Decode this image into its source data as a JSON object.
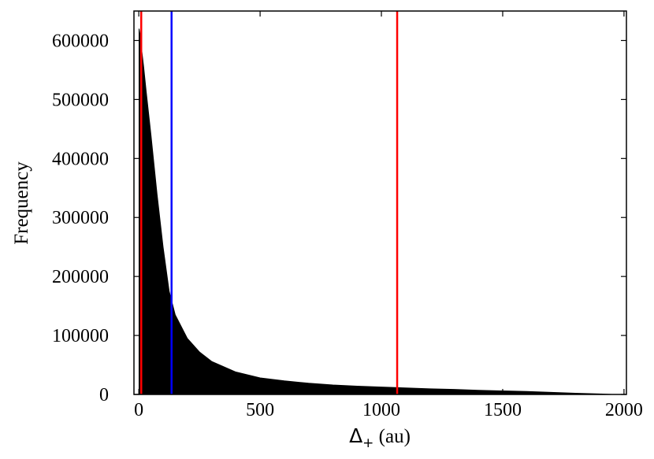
{
  "chart_data": {
    "type": "bar",
    "title": "",
    "xlabel_symbol": "Δ",
    "xlabel_subscript": "+",
    "xlabel_unit": " (au)",
    "ylabel": "Frequency",
    "xlim": [
      -20,
      2010
    ],
    "ylim": [
      0,
      650000
    ],
    "xticks": [
      0,
      500,
      1000,
      1500,
      2000
    ],
    "yticks": [
      0,
      100000,
      200000,
      300000,
      400000,
      500000,
      600000
    ],
    "xtick_labels": [
      "0",
      "500",
      "1000",
      "1500",
      "2000"
    ],
    "ytick_labels": [
      "0",
      "100000",
      "200000",
      "300000",
      "400000",
      "500000",
      "600000"
    ],
    "grid": false,
    "histogram": {
      "color": "#000000",
      "x": [
        1,
        5,
        10,
        20,
        30,
        50,
        75,
        100,
        125,
        150,
        200,
        250,
        300,
        400,
        500,
        600,
        700,
        800,
        900,
        1000,
        1100,
        1200,
        1300,
        1400,
        1500,
        1600,
        1700,
        1800,
        1900,
        1950
      ],
      "frequency": [
        620000,
        610000,
        590000,
        555000,
        515000,
        440000,
        340000,
        250000,
        175000,
        135000,
        95000,
        72000,
        56000,
        38000,
        28000,
        23000,
        19000,
        16000,
        14000,
        12500,
        11000,
        9500,
        8500,
        7000,
        6000,
        5000,
        3500,
        2000,
        800,
        0
      ]
    },
    "vlines": [
      {
        "x": 10,
        "color": "#ff0000"
      },
      {
        "x": 135,
        "color": "#0000ff"
      },
      {
        "x": 1065,
        "color": "#ff0000"
      }
    ]
  }
}
